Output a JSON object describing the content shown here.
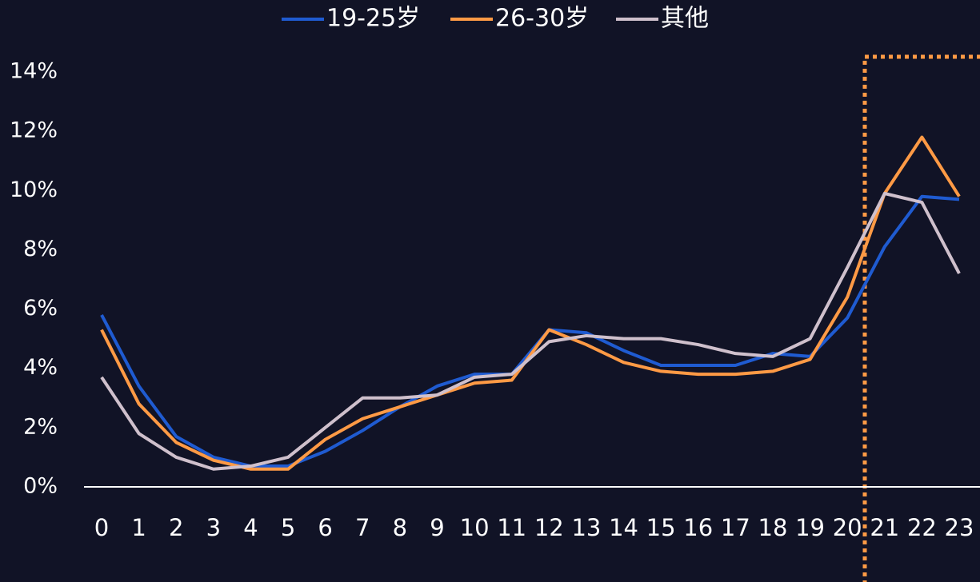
{
  "chart_data": {
    "type": "line",
    "categories": [
      "0",
      "1",
      "2",
      "3",
      "4",
      "5",
      "6",
      "7",
      "8",
      "9",
      "10",
      "11",
      "12",
      "13",
      "14",
      "15",
      "16",
      "17",
      "18",
      "19",
      "20",
      "21",
      "22",
      "23"
    ],
    "series": [
      {
        "name": "19-25岁",
        "color": "#1f5bd1",
        "values": [
          5.8,
          3.4,
          1.7,
          1.0,
          0.7,
          0.7,
          1.2,
          1.9,
          2.7,
          3.4,
          3.8,
          3.8,
          5.3,
          5.2,
          4.6,
          4.1,
          4.1,
          4.1,
          4.5,
          4.4,
          5.7,
          8.1,
          9.8,
          9.7
        ]
      },
      {
        "name": "26-30岁",
        "color": "#ff9a45",
        "values": [
          5.3,
          2.8,
          1.5,
          0.9,
          0.6,
          0.6,
          1.6,
          2.3,
          2.7,
          3.1,
          3.5,
          3.6,
          5.3,
          4.8,
          4.2,
          3.9,
          3.8,
          3.8,
          3.9,
          4.3,
          6.4,
          9.9,
          11.8,
          9.8
        ]
      },
      {
        "name": "其他",
        "color": "#cfc0cc",
        "values": [
          3.7,
          1.8,
          1.0,
          0.6,
          0.7,
          1.0,
          2.0,
          3.0,
          3.0,
          3.1,
          3.7,
          3.8,
          4.9,
          5.1,
          5.0,
          5.0,
          4.8,
          4.5,
          4.4,
          5.0,
          7.4,
          9.9,
          9.6,
          7.2
        ]
      }
    ],
    "ylim": [
      0,
      14
    ],
    "yticks": [
      {
        "value": 0,
        "label": "0%"
      },
      {
        "value": 2,
        "label": "2%"
      },
      {
        "value": 4,
        "label": "4%"
      },
      {
        "value": 6,
        "label": "6%"
      },
      {
        "value": 8,
        "label": "8%"
      },
      {
        "value": 10,
        "label": "10%"
      },
      {
        "value": 12,
        "label": "12%"
      },
      {
        "value": 14,
        "label": "14%"
      }
    ],
    "legend": "top"
  }
}
